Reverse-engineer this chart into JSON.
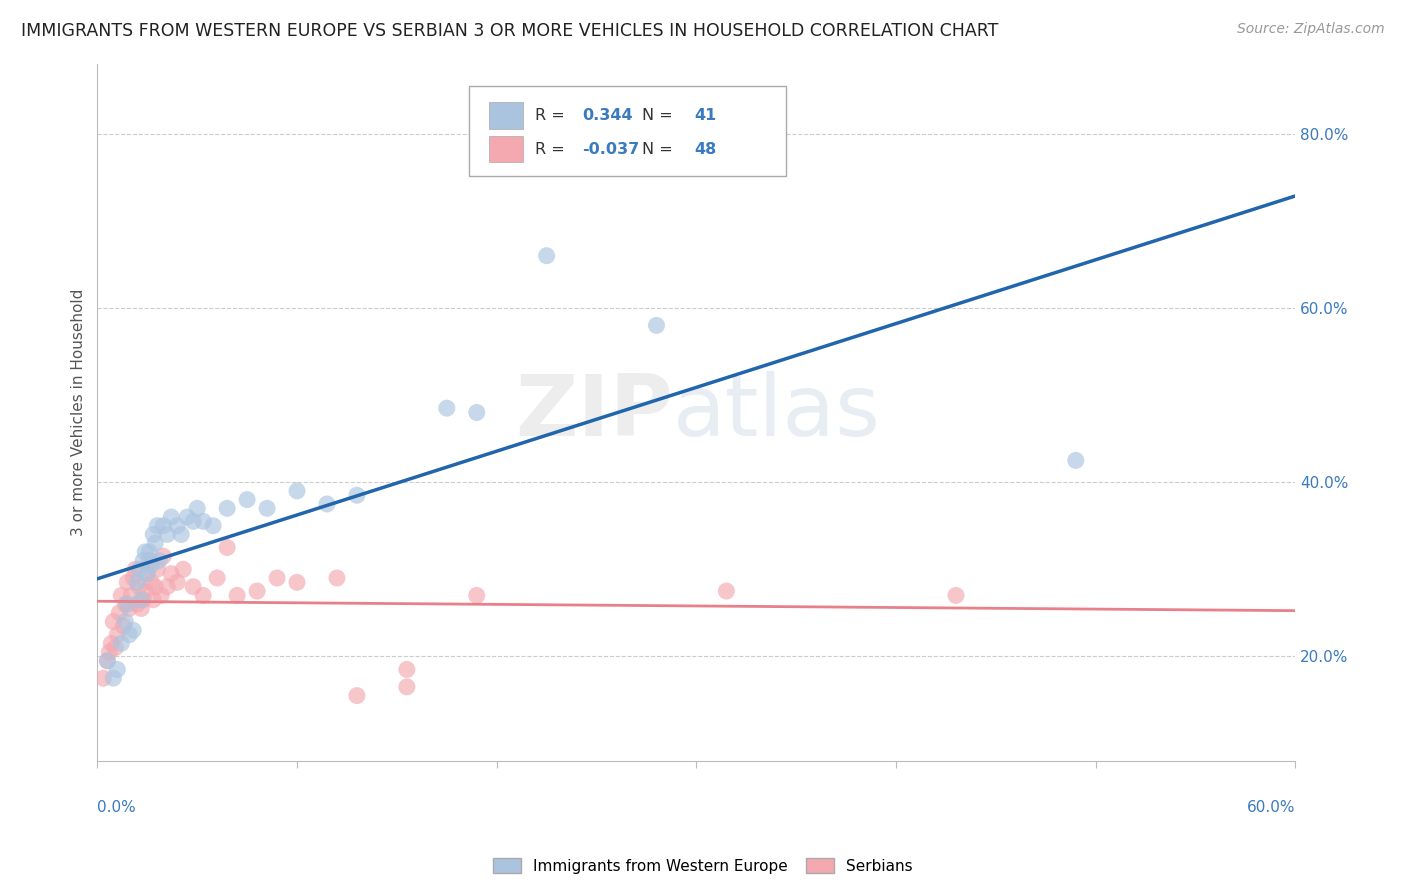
{
  "title": "IMMIGRANTS FROM WESTERN EUROPE VS SERBIAN 3 OR MORE VEHICLES IN HOUSEHOLD CORRELATION CHART",
  "source": "Source: ZipAtlas.com",
  "ylabel": "3 or more Vehicles in Household",
  "blue_R": 0.344,
  "blue_N": 41,
  "pink_R": -0.037,
  "pink_N": 48,
  "blue_color": "#aac4e0",
  "pink_color": "#f4a8b0",
  "trendline_blue": "#2166ac",
  "trendline_pink": "#e8808a",
  "xmin": 0.0,
  "xmax": 0.6,
  "ymin": 0.08,
  "ymax": 0.88,
  "ytick_values": [
    0.2,
    0.4,
    0.6,
    0.8
  ],
  "ytick_labels": [
    "20.0%",
    "40.0%",
    "60.0%",
    "80.0%"
  ],
  "blue_scatter": [
    [
      0.005,
      0.195
    ],
    [
      0.008,
      0.175
    ],
    [
      0.01,
      0.185
    ],
    [
      0.012,
      0.215
    ],
    [
      0.014,
      0.24
    ],
    [
      0.015,
      0.26
    ],
    [
      0.016,
      0.225
    ],
    [
      0.018,
      0.23
    ],
    [
      0.02,
      0.285
    ],
    [
      0.021,
      0.3
    ],
    [
      0.022,
      0.265
    ],
    [
      0.023,
      0.31
    ],
    [
      0.024,
      0.32
    ],
    [
      0.025,
      0.295
    ],
    [
      0.026,
      0.32
    ],
    [
      0.027,
      0.305
    ],
    [
      0.028,
      0.34
    ],
    [
      0.029,
      0.33
    ],
    [
      0.03,
      0.35
    ],
    [
      0.031,
      0.31
    ],
    [
      0.033,
      0.35
    ],
    [
      0.035,
      0.34
    ],
    [
      0.037,
      0.36
    ],
    [
      0.04,
      0.35
    ],
    [
      0.042,
      0.34
    ],
    [
      0.045,
      0.36
    ],
    [
      0.048,
      0.355
    ],
    [
      0.05,
      0.37
    ],
    [
      0.053,
      0.355
    ],
    [
      0.058,
      0.35
    ],
    [
      0.065,
      0.37
    ],
    [
      0.075,
      0.38
    ],
    [
      0.085,
      0.37
    ],
    [
      0.1,
      0.39
    ],
    [
      0.115,
      0.375
    ],
    [
      0.13,
      0.385
    ],
    [
      0.175,
      0.485
    ],
    [
      0.225,
      0.66
    ],
    [
      0.28,
      0.58
    ],
    [
      0.49,
      0.425
    ],
    [
      0.19,
      0.48
    ]
  ],
  "pink_scatter": [
    [
      0.003,
      0.175
    ],
    [
      0.005,
      0.195
    ],
    [
      0.006,
      0.205
    ],
    [
      0.007,
      0.215
    ],
    [
      0.008,
      0.24
    ],
    [
      0.009,
      0.21
    ],
    [
      0.01,
      0.225
    ],
    [
      0.011,
      0.25
    ],
    [
      0.012,
      0.27
    ],
    [
      0.013,
      0.235
    ],
    [
      0.014,
      0.26
    ],
    [
      0.015,
      0.285
    ],
    [
      0.016,
      0.255
    ],
    [
      0.017,
      0.27
    ],
    [
      0.018,
      0.29
    ],
    [
      0.019,
      0.3
    ],
    [
      0.02,
      0.26
    ],
    [
      0.021,
      0.28
    ],
    [
      0.022,
      0.255
    ],
    [
      0.023,
      0.265
    ],
    [
      0.024,
      0.275
    ],
    [
      0.025,
      0.295
    ],
    [
      0.026,
      0.31
    ],
    [
      0.027,
      0.285
    ],
    [
      0.028,
      0.265
    ],
    [
      0.029,
      0.28
    ],
    [
      0.03,
      0.3
    ],
    [
      0.032,
      0.27
    ],
    [
      0.033,
      0.315
    ],
    [
      0.035,
      0.28
    ],
    [
      0.037,
      0.295
    ],
    [
      0.04,
      0.285
    ],
    [
      0.043,
      0.3
    ],
    [
      0.048,
      0.28
    ],
    [
      0.053,
      0.27
    ],
    [
      0.06,
      0.29
    ],
    [
      0.065,
      0.325
    ],
    [
      0.07,
      0.27
    ],
    [
      0.08,
      0.275
    ],
    [
      0.09,
      0.29
    ],
    [
      0.1,
      0.285
    ],
    [
      0.12,
      0.29
    ],
    [
      0.13,
      0.155
    ],
    [
      0.155,
      0.165
    ],
    [
      0.155,
      0.185
    ],
    [
      0.19,
      0.27
    ],
    [
      0.315,
      0.275
    ],
    [
      0.43,
      0.27
    ]
  ],
  "watermark_zip": "ZIP",
  "watermark_atlas": "atlas",
  "background_color": "#ffffff",
  "legend_label_blue": "Immigrants from Western Europe",
  "legend_label_pink": "Serbians"
}
